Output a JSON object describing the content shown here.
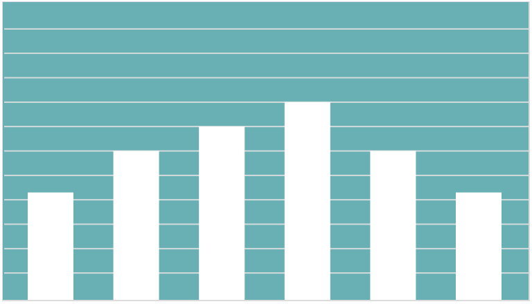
{
  "chart_data": {
    "type": "bar",
    "title": "",
    "xlabel": "",
    "ylabel": "",
    "categories": [
      "",
      "",
      "",
      "",
      "",
      ""
    ],
    "values": [
      4.3,
      6,
      7,
      8,
      6,
      4.3
    ],
    "ylim": [
      0,
      12
    ],
    "grid": true,
    "gridline_step": 1,
    "legend": "none",
    "colors": {
      "background": "#68b0b4",
      "bars": "#ffffff",
      "gridlines": "#d3dcdc",
      "frame": "#c8c8c8"
    }
  }
}
